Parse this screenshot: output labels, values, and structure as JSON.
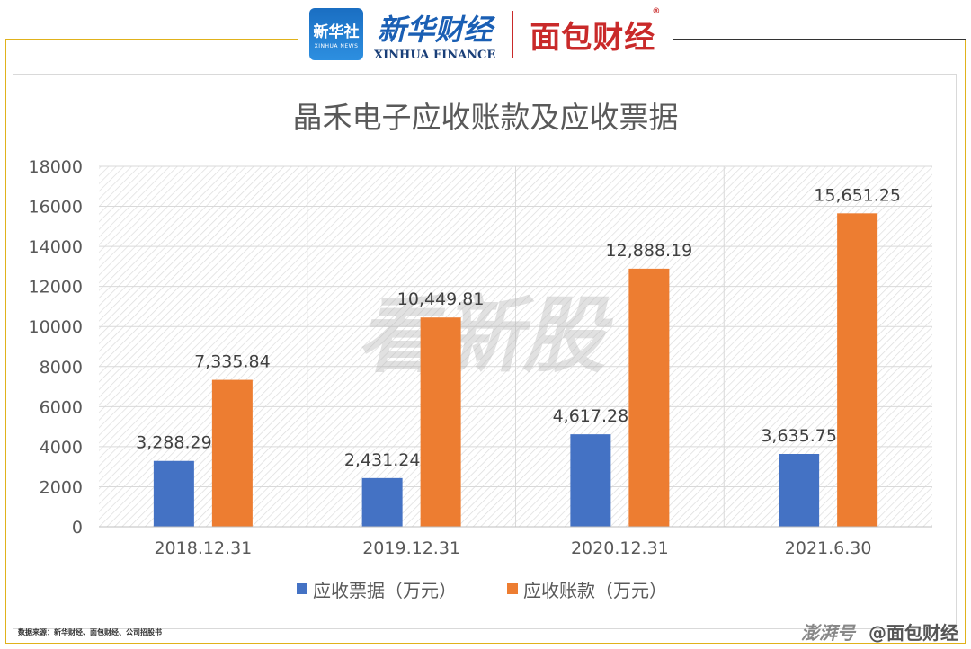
{
  "header": {
    "xinhua_logo_cn": "新华社",
    "xinhua_logo_en": "XINHUA NEWS",
    "brand_cn": "新华财经",
    "brand_en": "XINHUA FINANCE",
    "partner": "面包财经",
    "registered_mark": "®"
  },
  "watermark": "看新股",
  "source_note": "数据来源：新华财经、面包财经、公司招股书",
  "footer_brand": {
    "platform": "澎湃号",
    "account": "@面包财经"
  },
  "colors": {
    "series1": "#4472c4",
    "series2": "#ed7d31",
    "frame": "#e0b21b",
    "grid": "#d9d9d9"
  },
  "chart_data": {
    "type": "bar",
    "title": "晶禾电子应收账款及应收票据",
    "categories": [
      "2018.12.31",
      "2019.12.31",
      "2020.12.31",
      "2021.6.30"
    ],
    "series": [
      {
        "name": "应收票据（万元）",
        "values": [
          3288.29,
          2431.24,
          4617.28,
          3635.75
        ],
        "labels": [
          "3,288.29",
          "2,431.24",
          "4,617.28",
          "3,635.75"
        ]
      },
      {
        "name": "应收账款（万元）",
        "values": [
          7335.84,
          10449.81,
          12888.19,
          15651.25
        ],
        "labels": [
          "7,335.84",
          "10,449.81",
          "12,888.19",
          "15,651.25"
        ]
      }
    ],
    "ylim": [
      0,
      18000
    ],
    "yticks": [
      "0",
      "2000",
      "4000",
      "6000",
      "8000",
      "10000",
      "12000",
      "14000",
      "16000",
      "18000"
    ],
    "grid": true,
    "legend_position": "bottom"
  }
}
